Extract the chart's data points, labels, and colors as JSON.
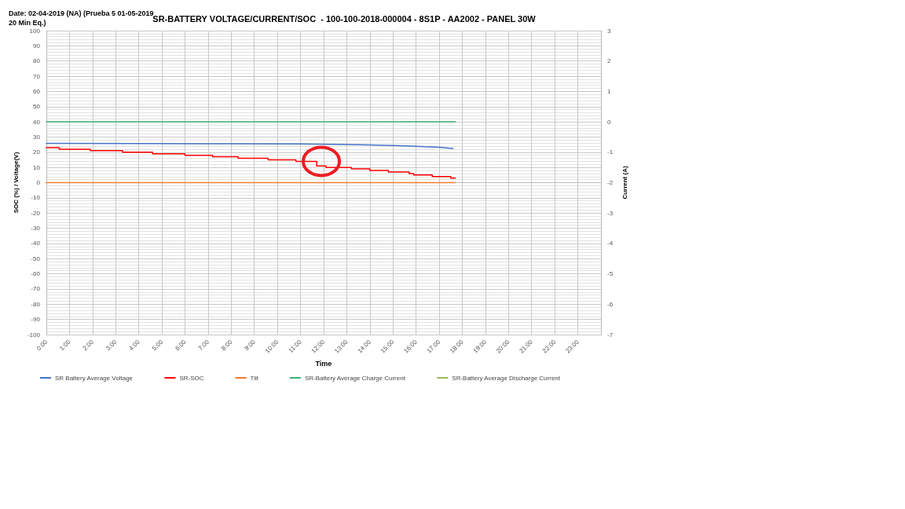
{
  "chart_data": {
    "type": "line",
    "title": "SR-BATTERY VOLTAGE/CURRENT/SOC  - 100-100-2018-000004 - 8S1P - AA2002 - PANEL 30W",
    "annotations": [
      "Date: 02-04-2019 (NA) (Prueba 5 01-05-2019 20 Min Eq.)"
    ],
    "xlabel": "Time",
    "ylabel": "SOC (%) / Voltage(V)",
    "y2label": "Current (A)",
    "xlim": [
      0,
      24
    ],
    "xticks": [
      {
        "value": 0,
        "label": "0:00"
      },
      {
        "value": 1,
        "label": "1:00"
      },
      {
        "value": 2,
        "label": "2:00"
      },
      {
        "value": 3,
        "label": "3:00"
      },
      {
        "value": 4,
        "label": "4:00"
      },
      {
        "value": 5,
        "label": "5:00"
      },
      {
        "value": 6,
        "label": "6:00"
      },
      {
        "value": 7,
        "label": "7:00"
      },
      {
        "value": 8,
        "label": "8:00"
      },
      {
        "value": 9,
        "label": "9:00"
      },
      {
        "value": 10,
        "label": "10:00"
      },
      {
        "value": 11,
        "label": "11:00"
      },
      {
        "value": 12,
        "label": "12:00"
      },
      {
        "value": 13,
        "label": "13:00"
      },
      {
        "value": 14,
        "label": "14:00"
      },
      {
        "value": 15,
        "label": "15:00"
      },
      {
        "value": 16,
        "label": "16:00"
      },
      {
        "value": 17,
        "label": "17:00"
      },
      {
        "value": 18,
        "label": "18:00"
      },
      {
        "value": 19,
        "label": "19:00"
      },
      {
        "value": 20,
        "label": "20:00"
      },
      {
        "value": 21,
        "label": "21:00"
      },
      {
        "value": 22,
        "label": "22:00"
      },
      {
        "value": 23,
        "label": "23:00"
      }
    ],
    "ylim": [
      -100,
      100
    ],
    "yticks": [
      -100,
      -90,
      -80,
      -70,
      -60,
      -50,
      -40,
      -30,
      -20,
      -10,
      0,
      10,
      20,
      30,
      40,
      50,
      60,
      70,
      80,
      90,
      100
    ],
    "y2lim": [
      -7,
      3
    ],
    "y2ticks": [
      -7,
      -6,
      -5,
      -4,
      -3,
      -2,
      -1,
      0,
      1,
      2,
      3
    ],
    "grid": true,
    "legend": "bottom",
    "marker": "none",
    "line_style": "solid",
    "series": [
      {
        "name": "SR Battery Average Voltage",
        "color": "#4472c4",
        "x": [
          0,
          4,
          8,
          11,
          13,
          14,
          15,
          16,
          17,
          17.6
        ],
        "values": [
          25.8,
          25.7,
          25.6,
          25.4,
          25.1,
          24.8,
          24.4,
          23.9,
          23.2,
          22.5
        ]
      },
      {
        "name": "SR-SOC",
        "type": "step",
        "color": "#ff0000",
        "x": [
          0,
          0.56,
          1.9,
          3.3,
          4.6,
          6.0,
          7.2,
          8.3,
          9.6,
          10.8,
          11.7,
          12.1,
          13.2,
          14.0,
          14.8,
          15.7,
          15.9,
          16.7,
          17.5,
          17.7
        ],
        "values": [
          23,
          22,
          21,
          20,
          19,
          18,
          17,
          16,
          15,
          14,
          11,
          10,
          9,
          8,
          7,
          6,
          5,
          4,
          3,
          3
        ]
      },
      {
        "name": "Tilt",
        "color": "#ed7d31",
        "x": [
          0,
          17.7
        ],
        "values": [
          0,
          0
        ]
      },
      {
        "name": "SR-Battery Average Charge Current",
        "color": "#3cb371",
        "axis": "y2",
        "x": [
          0,
          17.7
        ],
        "values": [
          0,
          0
        ]
      },
      {
        "name": "SR-Battery Average Discharge Current",
        "color": "#9bbb59",
        "axis": "y2"
      }
    ]
  }
}
